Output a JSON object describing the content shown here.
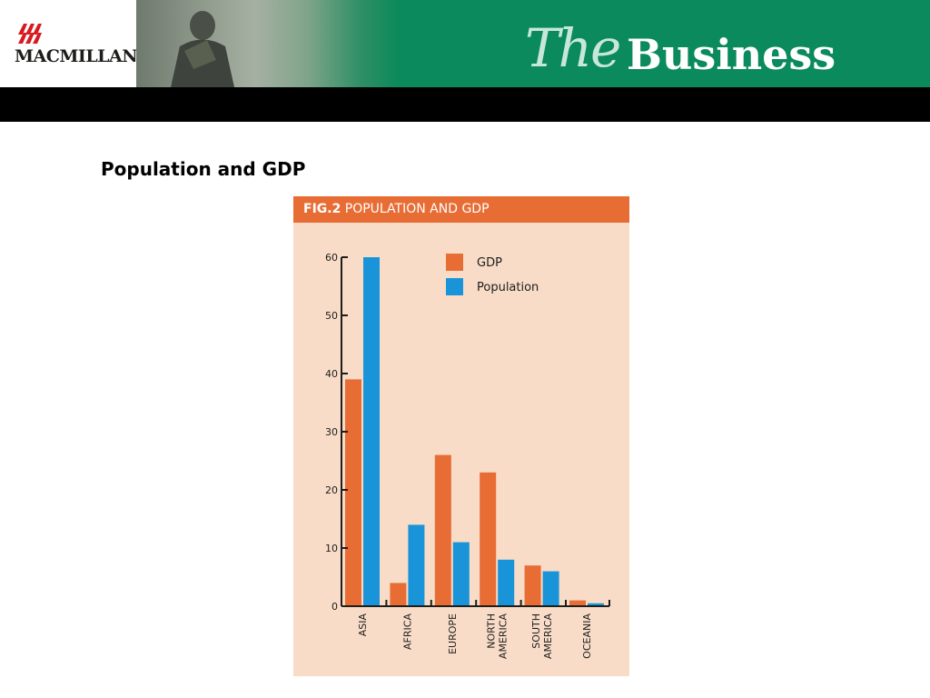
{
  "header": {
    "publisher": "MACMILLAN",
    "brand_the": "The",
    "brand_business": "Business"
  },
  "slide": {
    "title": "Population and GDP"
  },
  "colors": {
    "gdp": "#e86d35",
    "population": "#1a94d8",
    "figure_bg": "#f8dcc8",
    "header_green": "#0a8a5d"
  },
  "chart_data": {
    "type": "bar",
    "fig_number": "FIG.2",
    "title": "POPULATION AND GDP",
    "categories": [
      [
        "ASIA"
      ],
      [
        "AFRICA"
      ],
      [
        "EUROPE"
      ],
      [
        "NORTH",
        "AMERICA"
      ],
      [
        "SOUTH",
        "AMERICA"
      ],
      [
        "OCEANIA"
      ]
    ],
    "series": [
      {
        "name": "GDP",
        "values": [
          39,
          4,
          26,
          23,
          7,
          1
        ]
      },
      {
        "name": "Population",
        "values": [
          60,
          14,
          11,
          8,
          6,
          0.5
        ]
      }
    ],
    "ylim": [
      0,
      60
    ],
    "yticks": [
      0,
      10,
      20,
      30,
      40,
      50,
      60
    ],
    "legend_position": "top-right",
    "grid": false
  }
}
